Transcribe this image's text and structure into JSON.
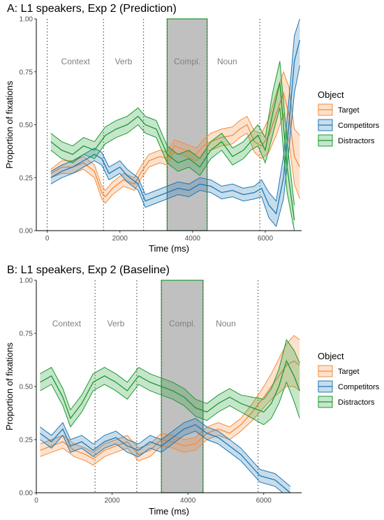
{
  "chart_data": [
    {
      "type": "line",
      "title": "A: L1 speakers, Exp 2 (Prediction)",
      "xlabel": "Time (ms)",
      "ylabel": "Proportion of fixations",
      "xlim": [
        -300,
        7000
      ],
      "ylim": [
        0,
        1
      ],
      "x_ticks": [
        0,
        2000,
        4000,
        6000
      ],
      "y_ticks": [
        "0.00",
        "0.25",
        "0.50",
        "0.75",
        "1.00"
      ],
      "region_lines": [
        0,
        1550,
        2650,
        3300,
        4400,
        5850
      ],
      "shaded_region": [
        3300,
        4400
      ],
      "region_labels": [
        {
          "text": "Context",
          "x": 780
        },
        {
          "text": "Verb",
          "x": 2100
        },
        {
          "text": "Compl.",
          "x": 3850
        },
        {
          "text": "Noun",
          "x": 4950
        }
      ],
      "legend": {
        "title": "Object",
        "position": "right"
      },
      "series": [
        {
          "name": "Target",
          "color": "#f58c3b",
          "x": [
            100,
            400,
            700,
            1000,
            1300,
            1500,
            1600,
            1800,
            2100,
            2400,
            2600,
            2800,
            3100,
            3300,
            3500,
            3800,
            4100,
            4300,
            4500,
            4800,
            5100,
            5300,
            5500,
            5700,
            5900,
            6100,
            6300,
            6500,
            6650,
            6800,
            6950
          ],
          "y": [
            0.27,
            0.3,
            0.3,
            0.32,
            0.28,
            0.18,
            0.16,
            0.2,
            0.24,
            0.22,
            0.28,
            0.33,
            0.35,
            0.34,
            0.4,
            0.38,
            0.36,
            0.4,
            0.42,
            0.44,
            0.45,
            0.48,
            0.5,
            0.42,
            0.4,
            0.45,
            0.55,
            0.65,
            0.55,
            0.35,
            0.3
          ],
          "lower": [
            0.25,
            0.27,
            0.27,
            0.29,
            0.25,
            0.15,
            0.13,
            0.17,
            0.21,
            0.19,
            0.25,
            0.3,
            0.32,
            0.31,
            0.37,
            0.35,
            0.33,
            0.37,
            0.38,
            0.4,
            0.41,
            0.44,
            0.46,
            0.37,
            0.34,
            0.37,
            0.45,
            0.55,
            0.42,
            0.22,
            0.15
          ],
          "upper": [
            0.29,
            0.33,
            0.33,
            0.35,
            0.31,
            0.21,
            0.19,
            0.23,
            0.27,
            0.25,
            0.31,
            0.36,
            0.38,
            0.37,
            0.43,
            0.41,
            0.39,
            0.43,
            0.46,
            0.48,
            0.49,
            0.52,
            0.54,
            0.47,
            0.46,
            0.53,
            0.65,
            0.75,
            0.68,
            0.48,
            0.45
          ]
        },
        {
          "name": "Competitors",
          "color": "#1f78b4",
          "x": [
            100,
            400,
            700,
            1000,
            1300,
            1500,
            1700,
            2000,
            2200,
            2500,
            2700,
            3000,
            3300,
            3600,
            3900,
            4200,
            4500,
            4800,
            5100,
            5400,
            5700,
            5900,
            6100,
            6300,
            6500,
            6650,
            6800,
            6950
          ],
          "y": [
            0.25,
            0.28,
            0.3,
            0.33,
            0.36,
            0.34,
            0.27,
            0.3,
            0.26,
            0.22,
            0.14,
            0.16,
            0.18,
            0.2,
            0.19,
            0.22,
            0.21,
            0.18,
            0.19,
            0.17,
            0.18,
            0.2,
            0.12,
            0.08,
            0.25,
            0.5,
            0.8,
            0.9
          ],
          "lower": [
            0.22,
            0.25,
            0.27,
            0.3,
            0.33,
            0.31,
            0.24,
            0.27,
            0.23,
            0.19,
            0.11,
            0.13,
            0.15,
            0.17,
            0.16,
            0.19,
            0.18,
            0.15,
            0.16,
            0.14,
            0.15,
            0.16,
            0.06,
            0.02,
            0.15,
            0.38,
            0.65,
            0.78
          ],
          "upper": [
            0.28,
            0.31,
            0.33,
            0.36,
            0.39,
            0.37,
            0.3,
            0.33,
            0.29,
            0.25,
            0.17,
            0.19,
            0.21,
            0.23,
            0.22,
            0.25,
            0.24,
            0.21,
            0.22,
            0.2,
            0.21,
            0.24,
            0.18,
            0.14,
            0.35,
            0.62,
            0.92,
            1.0
          ]
        },
        {
          "name": "Distractors",
          "color": "#1a9a2e",
          "x": [
            100,
            400,
            700,
            1000,
            1300,
            1600,
            1900,
            2200,
            2500,
            2700,
            3000,
            3300,
            3600,
            3900,
            4200,
            4500,
            4800,
            5100,
            5400,
            5600,
            5800,
            6000,
            6200,
            6400,
            6600,
            6800
          ],
          "y": [
            0.42,
            0.38,
            0.36,
            0.4,
            0.38,
            0.45,
            0.48,
            0.5,
            0.54,
            0.5,
            0.48,
            0.36,
            0.32,
            0.34,
            0.3,
            0.38,
            0.42,
            0.35,
            0.38,
            0.42,
            0.45,
            0.38,
            0.55,
            0.7,
            0.3,
            0.05
          ],
          "lower": [
            0.38,
            0.34,
            0.32,
            0.36,
            0.34,
            0.41,
            0.44,
            0.46,
            0.5,
            0.46,
            0.44,
            0.32,
            0.28,
            0.3,
            0.26,
            0.34,
            0.38,
            0.31,
            0.34,
            0.38,
            0.4,
            0.32,
            0.45,
            0.58,
            0.18,
            0.0
          ],
          "upper": [
            0.46,
            0.42,
            0.4,
            0.44,
            0.42,
            0.49,
            0.52,
            0.54,
            0.58,
            0.54,
            0.52,
            0.4,
            0.36,
            0.38,
            0.34,
            0.42,
            0.46,
            0.39,
            0.42,
            0.46,
            0.5,
            0.44,
            0.65,
            0.8,
            0.42,
            0.12
          ]
        }
      ]
    },
    {
      "type": "line",
      "title": "B: L1 speakers, Exp 2 (Baseline)",
      "xlabel": "Time (ms)",
      "ylabel": "Proportion of fixations",
      "xlim": [
        0,
        7000
      ],
      "ylim": [
        0,
        1
      ],
      "x_ticks": [
        0,
        2000,
        4000,
        6000
      ],
      "y_ticks": [
        "0.00",
        "0.25",
        "0.50",
        "0.75",
        "1.00"
      ],
      "region_lines": [
        1550,
        2650,
        3300,
        4400,
        5850
      ],
      "shaded_region": [
        3300,
        4400
      ],
      "region_labels": [
        {
          "text": "Context",
          "x": 800
        },
        {
          "text": "Verb",
          "x": 2100
        },
        {
          "text": "Compl.",
          "x": 3850
        },
        {
          "text": "Noun",
          "x": 5000
        }
      ],
      "legend": {
        "title": "Object",
        "position": "right"
      },
      "series": [
        {
          "name": "Target",
          "color": "#f58c3b",
          "x": [
            100,
            400,
            700,
            1000,
            1300,
            1500,
            1800,
            2100,
            2400,
            2700,
            3000,
            3300,
            3600,
            3900,
            4200,
            4500,
            4800,
            5100,
            5400,
            5700,
            6000,
            6200,
            6400,
            6600,
            6800,
            6950
          ],
          "y": [
            0.2,
            0.22,
            0.24,
            0.2,
            0.18,
            0.16,
            0.2,
            0.22,
            0.24,
            0.18,
            0.2,
            0.25,
            0.24,
            0.22,
            0.23,
            0.28,
            0.3,
            0.28,
            0.32,
            0.38,
            0.45,
            0.5,
            0.55,
            0.6,
            0.62,
            0.6
          ],
          "lower": [
            0.17,
            0.19,
            0.21,
            0.17,
            0.15,
            0.13,
            0.17,
            0.19,
            0.21,
            0.15,
            0.17,
            0.22,
            0.21,
            0.19,
            0.2,
            0.25,
            0.27,
            0.25,
            0.29,
            0.34,
            0.4,
            0.44,
            0.47,
            0.5,
            0.5,
            0.48
          ],
          "upper": [
            0.23,
            0.25,
            0.27,
            0.23,
            0.21,
            0.19,
            0.23,
            0.25,
            0.27,
            0.21,
            0.23,
            0.28,
            0.27,
            0.25,
            0.26,
            0.31,
            0.33,
            0.31,
            0.35,
            0.42,
            0.5,
            0.56,
            0.63,
            0.7,
            0.74,
            0.72
          ]
        },
        {
          "name": "Competitors",
          "color": "#1f78b4",
          "x": [
            100,
            400,
            700,
            900,
            1200,
            1500,
            1800,
            2100,
            2400,
            2700,
            3000,
            3300,
            3600,
            3900,
            4200,
            4500,
            4800,
            5100,
            5400,
            5700,
            5900,
            6100,
            6300,
            6500,
            6700
          ],
          "y": [
            0.28,
            0.24,
            0.3,
            0.22,
            0.24,
            0.2,
            0.24,
            0.26,
            0.22,
            0.2,
            0.24,
            0.22,
            0.26,
            0.3,
            0.32,
            0.28,
            0.26,
            0.22,
            0.18,
            0.12,
            0.08,
            0.07,
            0.06,
            0.03,
            0.0
          ],
          "lower": [
            0.25,
            0.21,
            0.27,
            0.19,
            0.21,
            0.17,
            0.21,
            0.23,
            0.19,
            0.17,
            0.21,
            0.19,
            0.23,
            0.27,
            0.29,
            0.25,
            0.23,
            0.19,
            0.15,
            0.09,
            0.05,
            0.04,
            0.03,
            0.0,
            0.0
          ],
          "upper": [
            0.31,
            0.27,
            0.33,
            0.25,
            0.27,
            0.23,
            0.27,
            0.29,
            0.25,
            0.23,
            0.27,
            0.25,
            0.29,
            0.33,
            0.35,
            0.31,
            0.29,
            0.25,
            0.21,
            0.15,
            0.11,
            0.1,
            0.09,
            0.06,
            0.03
          ]
        },
        {
          "name": "Distractors",
          "color": "#1a9a2e",
          "x": [
            100,
            400,
            700,
            900,
            1200,
            1500,
            1800,
            2100,
            2400,
            2700,
            3000,
            3300,
            3600,
            3900,
            4200,
            4500,
            4800,
            5100,
            5400,
            5700,
            6000,
            6200,
            6400,
            6600,
            6800,
            6950
          ],
          "y": [
            0.52,
            0.55,
            0.45,
            0.35,
            0.42,
            0.52,
            0.55,
            0.52,
            0.48,
            0.55,
            0.52,
            0.5,
            0.48,
            0.45,
            0.4,
            0.38,
            0.42,
            0.45,
            0.42,
            0.4,
            0.38,
            0.42,
            0.5,
            0.62,
            0.55,
            0.48
          ],
          "lower": [
            0.48,
            0.51,
            0.41,
            0.31,
            0.38,
            0.48,
            0.51,
            0.48,
            0.44,
            0.51,
            0.48,
            0.46,
            0.44,
            0.41,
            0.36,
            0.34,
            0.38,
            0.41,
            0.38,
            0.35,
            0.32,
            0.35,
            0.42,
            0.52,
            0.43,
            0.35
          ],
          "upper": [
            0.56,
            0.59,
            0.49,
            0.39,
            0.46,
            0.56,
            0.59,
            0.56,
            0.52,
            0.59,
            0.56,
            0.54,
            0.52,
            0.49,
            0.44,
            0.42,
            0.46,
            0.49,
            0.46,
            0.45,
            0.44,
            0.49,
            0.58,
            0.72,
            0.67,
            0.61
          ]
        }
      ]
    }
  ]
}
